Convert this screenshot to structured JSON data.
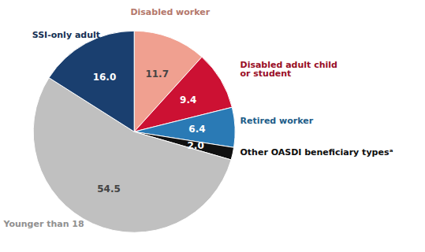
{
  "chart_data": {
    "type": "pie",
    "categories": [
      "Disabled worker",
      "Disabled adult child\nor student",
      "Retired worker",
      "Other OASDI beneficiary typesᵃ",
      "Younger than 18",
      "SSI-only adult"
    ],
    "values": [
      11.7,
      9.4,
      6.4,
      2.0,
      54.5,
      16.0
    ],
    "value_labels": [
      "11.7",
      "9.4",
      "6.4",
      "2.0",
      "54.5",
      "16.0"
    ],
    "colors": [
      "#f0a090",
      "#cc1133",
      "#2a7ab5",
      "#111111",
      "#c0c0c0",
      "#1a3f6f"
    ],
    "data_labels": true
  }
}
